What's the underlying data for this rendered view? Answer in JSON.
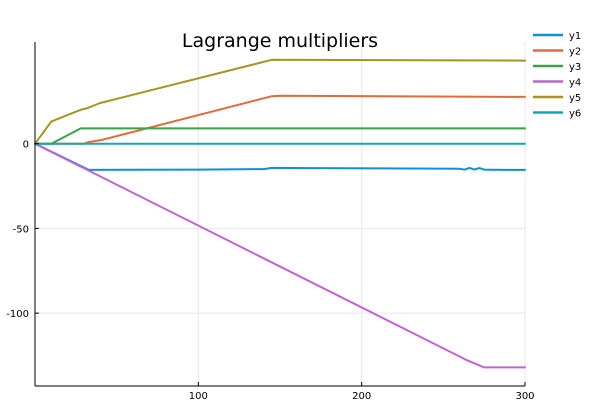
{
  "chart_data": {
    "type": "line",
    "title": "Lagrange multipliers",
    "xlabel": "",
    "ylabel": "",
    "xlim": [
      0,
      300
    ],
    "ylim": [
      -143,
      60
    ],
    "xticks": [
      100,
      200,
      300
    ],
    "yticks": [
      0,
      -50,
      -100
    ],
    "grid": true,
    "legend_position": "top-right",
    "series": [
      {
        "name": "y1",
        "color": "#0f8fd8",
        "x": [
          0,
          33,
          100,
          140,
          145,
          170,
          260,
          263,
          266,
          269,
          272,
          275,
          280,
          300
        ],
        "y": [
          0,
          -15.5,
          -15.3,
          -15.0,
          -14.3,
          -14.4,
          -14.8,
          -15.3,
          -14.3,
          -15.3,
          -14.4,
          -15.3,
          -15.4,
          -15.5
        ]
      },
      {
        "name": "y2",
        "color": "#e26a3c",
        "x": [
          0,
          30,
          33,
          40,
          145,
          150,
          300
        ],
        "y": [
          0,
          0,
          1,
          2,
          28,
          28.3,
          27.6
        ]
      },
      {
        "name": "y3",
        "color": "#3aa14b",
        "x": [
          0,
          10,
          28,
          300
        ],
        "y": [
          0,
          0,
          9,
          9
        ]
      },
      {
        "name": "y4",
        "color": "#c064d1",
        "x": [
          0,
          265,
          275,
          300
        ],
        "y": [
          0,
          -128,
          -132,
          -132
        ]
      },
      {
        "name": "y5",
        "color": "#a89520",
        "x": [
          0,
          10,
          20,
          28,
          32,
          40,
          145,
          300
        ],
        "y": [
          0,
          13,
          17,
          20,
          21,
          24,
          49.5,
          49
        ]
      },
      {
        "name": "y6",
        "color": "#12a9b5",
        "x": [
          0,
          300
        ],
        "y": [
          0,
          0
        ]
      }
    ]
  }
}
